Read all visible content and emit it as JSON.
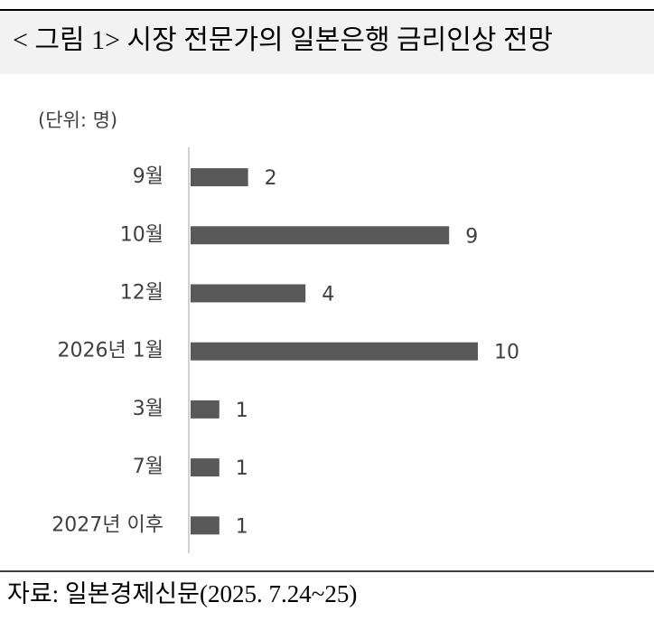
{
  "chart_data": {
    "type": "bar",
    "orientation": "horizontal",
    "title": "< 그림 1> 시장 전문가의 일본은행 금리인상 전망",
    "subtitle": "(단위: 명)",
    "categories": [
      "9월",
      "10월",
      "12월",
      "2026년 1월",
      "3월",
      "7월",
      "2027년 이후"
    ],
    "values": [
      2,
      9,
      4,
      10,
      1,
      1,
      1
    ],
    "color": "#595959",
    "source": "자료: 일본경제신문(2025. 7.24~25)"
  }
}
